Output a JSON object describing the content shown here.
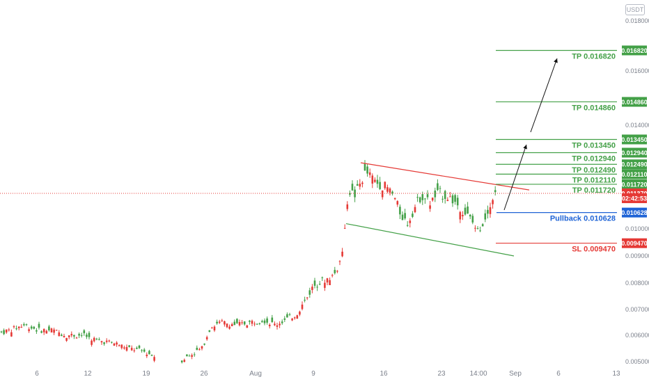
{
  "currency_badge": "USDT",
  "chart_data": {
    "type": "candlestick",
    "y_axis": {
      "min": 0.005,
      "max": 0.018,
      "ticks": [
        "0.018000",
        "0.016000",
        "0.014000",
        "0.010000",
        "0.009000",
        "0.008000",
        "0.007000",
        "0.006000",
        "0.005000"
      ],
      "tick_values": [
        0.018,
        0.016,
        0.014,
        0.01,
        0.009,
        0.008,
        0.007,
        0.006,
        0.005
      ]
    },
    "x_axis": {
      "ticks": [
        "6",
        "12",
        "19",
        "26",
        "Aug",
        "9",
        "16",
        "23",
        "14:00",
        "Sep",
        "6",
        "13"
      ]
    },
    "price_labels": [
      {
        "text": "0.016820",
        "value": 0.01682,
        "color": "#43a047"
      },
      {
        "text": "0.014860",
        "value": 0.01486,
        "color": "#43a047"
      },
      {
        "text": "0.013450",
        "value": 0.01345,
        "color": "#43a047"
      },
      {
        "text": "0.012940",
        "value": 0.01294,
        "color": "#43a047"
      },
      {
        "text": "0.012490",
        "value": 0.01249,
        "color": "#43a047"
      },
      {
        "text": "0.012110",
        "value": 0.01211,
        "color": "#43a047"
      },
      {
        "text": "0.011720",
        "value": 0.01172,
        "color": "#43a047"
      },
      {
        "text": "0.011370",
        "value": 0.01137,
        "color": "#e53935"
      },
      {
        "text": "02:42:53",
        "value": 0.01118,
        "color": "#e53935"
      },
      {
        "text": "0.010628",
        "value": 0.010628,
        "color": "#1e63d6"
      },
      {
        "text": "0.009470",
        "value": 0.00947,
        "color": "#e53935"
      }
    ],
    "levels": [
      {
        "label": "TP 0.016820",
        "value": 0.01682,
        "color": "#43a047"
      },
      {
        "label": "TP 0.014860",
        "value": 0.01486,
        "color": "#43a047"
      },
      {
        "label": "TP 0.013450",
        "value": 0.01345,
        "color": "#43a047"
      },
      {
        "label": "TP 0.012940",
        "value": 0.01294,
        "color": "#43a047"
      },
      {
        "label": "TP 0.012490",
        "value": 0.01249,
        "color": "#43a047"
      },
      {
        "label": "TP 0.012110",
        "value": 0.01211,
        "color": "#43a047"
      },
      {
        "label": "TP 0.011720",
        "value": 0.01172,
        "color": "#43a047"
      },
      {
        "label": "Pullback 0.010628",
        "value": 0.010628,
        "color": "#1e63d6"
      },
      {
        "label": "SL 0.009470",
        "value": 0.00947,
        "color": "#e53935"
      }
    ],
    "current_price": 0.01137,
    "channel": {
      "upper": {
        "from": 0.01255,
        "to": 0.0115,
        "color": "#e53935"
      },
      "lower": {
        "from": 0.0102,
        "to": 0.009,
        "color": "#43a047"
      }
    },
    "colors": {
      "up": "#26a69a",
      "up_body": "#43a047",
      "down": "#e53935"
    }
  }
}
